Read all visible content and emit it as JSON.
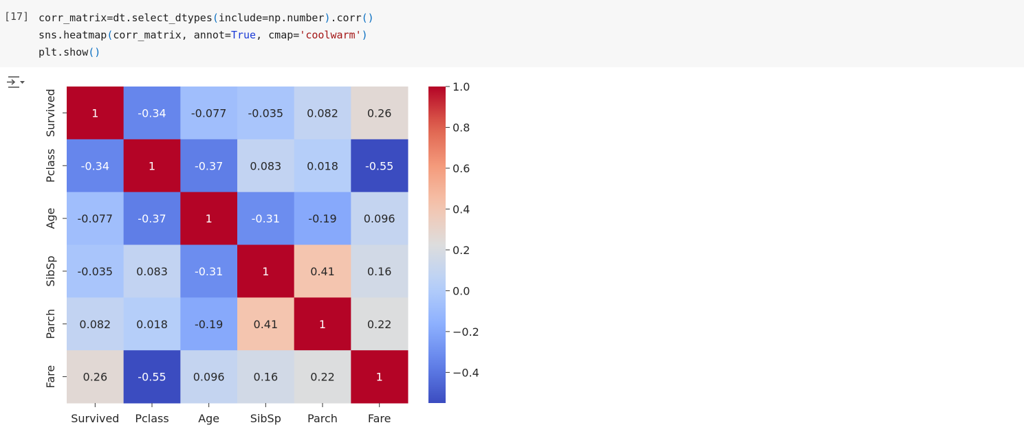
{
  "cell": {
    "execution_count": "[17]",
    "code_lines": [
      [
        {
          "t": "corr_matrix=dt.select_dtypes"
        },
        {
          "t": "(",
          "c": "br"
        },
        {
          "t": "include=np.number"
        },
        {
          "t": ")",
          "c": "br"
        },
        {
          "t": ".corr"
        },
        {
          "t": "()",
          "c": "br"
        }
      ],
      [
        {
          "t": "sns.heatmap"
        },
        {
          "t": "(",
          "c": "br"
        },
        {
          "t": "corr_matrix, annot="
        },
        {
          "t": "True",
          "c": "kw"
        },
        {
          "t": ", cmap="
        },
        {
          "t": "'coolwarm'",
          "c": "str"
        },
        {
          "t": ")",
          "c": "br"
        }
      ],
      [
        {
          "t": "plt.show"
        },
        {
          "t": "()",
          "c": "br"
        }
      ]
    ]
  },
  "output_toggle_icon": "output-collapse-icon",
  "chart_data": {
    "type": "heatmap",
    "colormap": "coolwarm",
    "x_categories": [
      "Survived",
      "Pclass",
      "Age",
      "SibSp",
      "Parch",
      "Fare"
    ],
    "y_categories": [
      "Survived",
      "Pclass",
      "Age",
      "SibSp",
      "Parch",
      "Fare"
    ],
    "values": [
      [
        1,
        -0.34,
        -0.077,
        -0.035,
        0.082,
        0.26
      ],
      [
        -0.34,
        1,
        -0.37,
        0.083,
        0.018,
        -0.55
      ],
      [
        -0.077,
        -0.37,
        1,
        -0.31,
        -0.19,
        0.096
      ],
      [
        -0.035,
        0.083,
        -0.31,
        1,
        0.41,
        0.16
      ],
      [
        0.082,
        0.018,
        -0.19,
        0.41,
        1,
        0.22
      ],
      [
        0.26,
        -0.55,
        0.096,
        0.16,
        0.22,
        1
      ]
    ],
    "annotations": [
      [
        "1",
        "-0.34",
        "-0.077",
        "-0.035",
        "0.082",
        "0.26"
      ],
      [
        "-0.34",
        "1",
        "-0.37",
        "0.083",
        "0.018",
        "-0.55"
      ],
      [
        "-0.077",
        "-0.37",
        "1",
        "-0.31",
        "-0.19",
        "0.096"
      ],
      [
        "-0.035",
        "0.083",
        "-0.31",
        "1",
        "0.41",
        "0.16"
      ],
      [
        "0.082",
        "0.018",
        "-0.19",
        "0.41",
        "1",
        "0.22"
      ],
      [
        "0.26",
        "-0.55",
        "0.096",
        "0.16",
        "0.22",
        "1"
      ]
    ],
    "vmin": -0.55,
    "vmax": 1.0,
    "colorbar_ticks": [
      1.0,
      0.8,
      0.6,
      0.4,
      0.2,
      0.0,
      -0.2,
      -0.4
    ],
    "colorbar_tick_labels": [
      "1.0",
      "0.8",
      "0.6",
      "0.4",
      "0.2",
      "0.0",
      "−0.2",
      "−0.4"
    ],
    "title": "",
    "xlabel": "",
    "ylabel": ""
  }
}
